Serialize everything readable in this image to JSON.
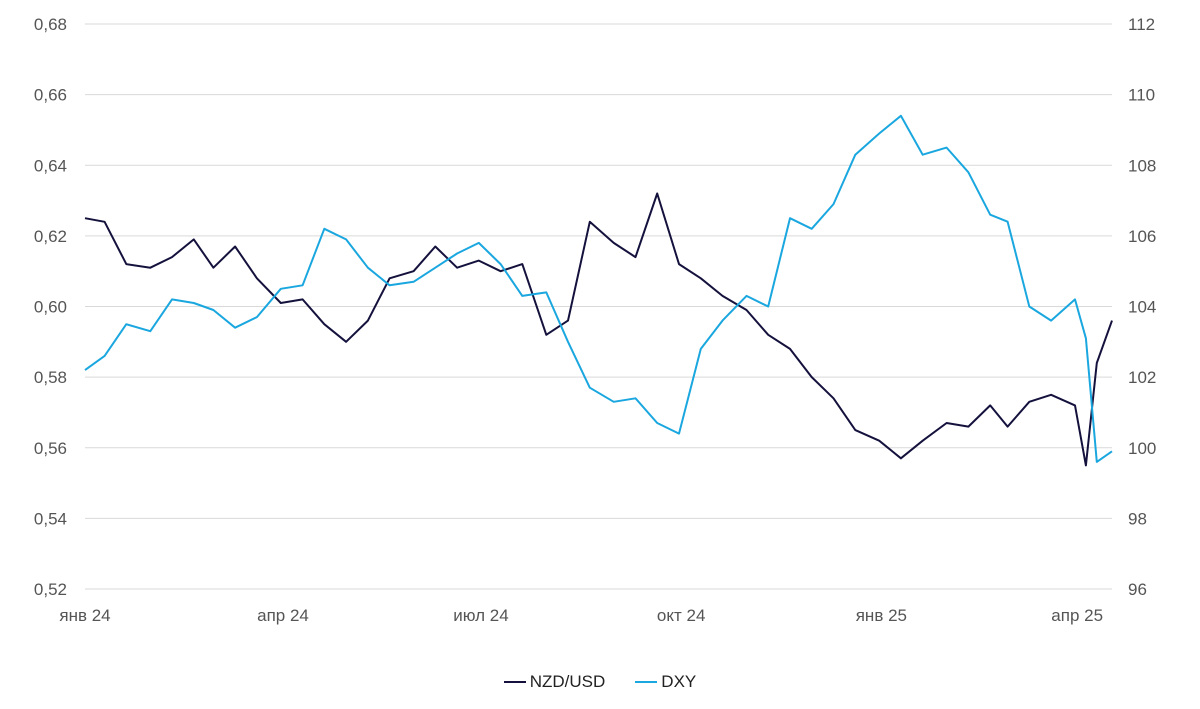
{
  "colors": {
    "nzd": "#14123d",
    "dxy": "#1aa7df",
    "grid": "#d9d9d9",
    "tick_text": "#555555"
  },
  "legend": {
    "nzd_label": "NZD/USD",
    "dxy_label": "DXY"
  },
  "chart_data": {
    "type": "line",
    "title": "",
    "x_ticks": [
      "янв 24",
      "апр 24",
      "июл 24",
      "окт 24",
      "янв 25",
      "апр 25"
    ],
    "x_tick_dates": [
      "2024-01-01",
      "2024-04-01",
      "2024-07-01",
      "2024-10-01",
      "2025-01-01",
      "2025-04-01"
    ],
    "x_range": [
      "2024-01-01",
      "2025-04-17"
    ],
    "y_left": {
      "ylim": [
        0.52,
        0.68
      ],
      "ticks": [
        "0,52",
        "0,54",
        "0,56",
        "0,58",
        "0,60",
        "0,62",
        "0,64",
        "0,66",
        "0,68"
      ]
    },
    "y_right": {
      "ylim": [
        96,
        112
      ],
      "ticks": [
        "96",
        "98",
        "100",
        "102",
        "104",
        "106",
        "108",
        "110",
        "112"
      ]
    },
    "grid": true,
    "legend_position": "bottom",
    "series": [
      {
        "name": "NZD/USD",
        "axis": "left",
        "color": "#14123d",
        "x": [
          "2024-01-01",
          "2024-01-10",
          "2024-01-20",
          "2024-01-31",
          "2024-02-10",
          "2024-02-20",
          "2024-02-29",
          "2024-03-10",
          "2024-03-20",
          "2024-03-31",
          "2024-04-10",
          "2024-04-20",
          "2024-04-30",
          "2024-05-10",
          "2024-05-20",
          "2024-05-31",
          "2024-06-10",
          "2024-06-20",
          "2024-06-30",
          "2024-07-10",
          "2024-07-20",
          "2024-07-31",
          "2024-08-10",
          "2024-08-20",
          "2024-08-31",
          "2024-09-10",
          "2024-09-20",
          "2024-09-30",
          "2024-10-10",
          "2024-10-20",
          "2024-10-31",
          "2024-11-10",
          "2024-11-20",
          "2024-11-30",
          "2024-12-10",
          "2024-12-20",
          "2024-12-31",
          "2025-01-10",
          "2025-01-20",
          "2025-01-31",
          "2025-02-10",
          "2025-02-20",
          "2025-02-28",
          "2025-03-10",
          "2025-03-20",
          "2025-03-31",
          "2025-04-05",
          "2025-04-10",
          "2025-04-17"
        ],
        "values": [
          0.625,
          0.624,
          0.612,
          0.611,
          0.614,
          0.619,
          0.611,
          0.617,
          0.608,
          0.601,
          0.602,
          0.595,
          0.59,
          0.596,
          0.608,
          0.61,
          0.617,
          0.611,
          0.613,
          0.61,
          0.612,
          0.592,
          0.596,
          0.624,
          0.618,
          0.614,
          0.632,
          0.612,
          0.608,
          0.603,
          0.599,
          0.592,
          0.588,
          0.58,
          0.574,
          0.565,
          0.562,
          0.557,
          0.562,
          0.567,
          0.566,
          0.572,
          0.566,
          0.573,
          0.575,
          0.572,
          0.555,
          0.584,
          0.596
        ]
      },
      {
        "name": "DXY",
        "axis": "right",
        "color": "#1aa7df",
        "x": [
          "2024-01-01",
          "2024-01-10",
          "2024-01-20",
          "2024-01-31",
          "2024-02-10",
          "2024-02-20",
          "2024-02-29",
          "2024-03-10",
          "2024-03-20",
          "2024-03-31",
          "2024-04-10",
          "2024-04-20",
          "2024-04-30",
          "2024-05-10",
          "2024-05-20",
          "2024-05-31",
          "2024-06-10",
          "2024-06-20",
          "2024-06-30",
          "2024-07-10",
          "2024-07-20",
          "2024-07-31",
          "2024-08-10",
          "2024-08-20",
          "2024-08-31",
          "2024-09-10",
          "2024-09-20",
          "2024-09-30",
          "2024-10-10",
          "2024-10-20",
          "2024-10-31",
          "2024-11-10",
          "2024-11-20",
          "2024-11-30",
          "2024-12-10",
          "2024-12-20",
          "2024-12-31",
          "2025-01-10",
          "2025-01-20",
          "2025-01-31",
          "2025-02-10",
          "2025-02-20",
          "2025-02-28",
          "2025-03-10",
          "2025-03-20",
          "2025-03-31",
          "2025-04-05",
          "2025-04-10",
          "2025-04-17"
        ],
        "values": [
          102.2,
          102.6,
          103.5,
          103.3,
          104.2,
          104.1,
          103.9,
          103.4,
          103.7,
          104.5,
          104.6,
          106.2,
          105.9,
          105.1,
          104.6,
          104.7,
          105.1,
          105.5,
          105.8,
          105.2,
          104.3,
          104.4,
          103.0,
          101.7,
          101.3,
          101.4,
          100.7,
          100.4,
          102.8,
          103.6,
          104.3,
          104.0,
          106.5,
          106.2,
          106.9,
          108.3,
          108.9,
          109.4,
          108.3,
          108.5,
          107.8,
          106.6,
          106.4,
          104.0,
          103.6,
          104.2,
          103.1,
          99.6,
          99.9
        ]
      }
    ]
  }
}
